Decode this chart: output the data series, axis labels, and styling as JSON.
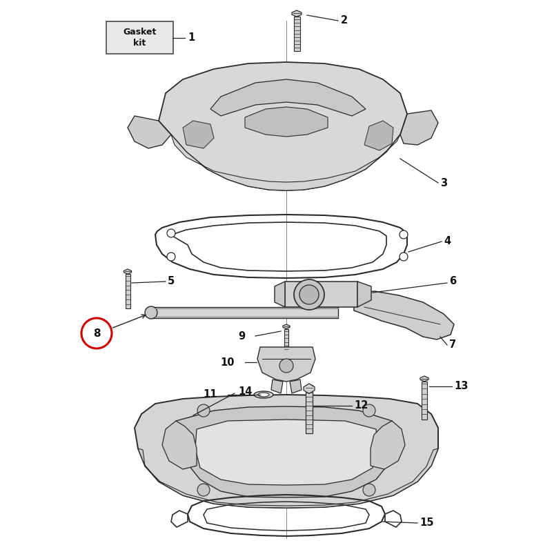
{
  "bg_color": "#ffffff",
  "parts_color": "#d0d0d0",
  "parts_edge_color": "#2a2a2a",
  "line_color": "#222222",
  "label_color": "#111111",
  "circle_8_color": "#cc0000",
  "gasket_box_fill": "#e0e0e0",
  "gasket_box_edge": "#444444",
  "fig_w": 8.0,
  "fig_h": 8.0,
  "dpi": 100,
  "label_fontsize": 10.5,
  "label_bold": true
}
